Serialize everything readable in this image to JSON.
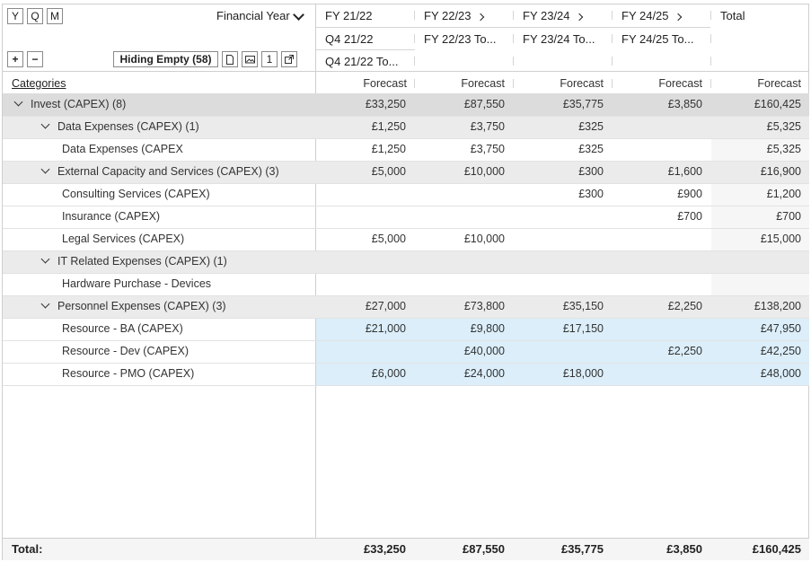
{
  "toolbar": {
    "period_buttons": [
      "Y",
      "Q",
      "M"
    ],
    "expand_label": "+",
    "collapse_label": "−",
    "hiding_empty_label": "Hiding Empty (58)",
    "page_number": "1",
    "financial_year_label": "Financial Year"
  },
  "columns": {
    "years": [
      "FY 21/22",
      "FY 22/23",
      "FY 23/24",
      "FY 24/25",
      "Total"
    ],
    "quarters": [
      "Q4 21/22",
      "FY 22/23 To...",
      "FY 23/24 To...",
      "FY 24/25 To..."
    ],
    "subquarters": [
      "Q4 21/22 To..."
    ],
    "measure": [
      "Forecast",
      "Forecast",
      "Forecast",
      "Forecast",
      "Forecast"
    ],
    "categories_header": "Categories"
  },
  "rows": [
    {
      "label": "Invest (CAPEX) (8)",
      "values": [
        "£33,250",
        "£87,550",
        "£35,775",
        "£3,850",
        "£160,425"
      ]
    },
    {
      "label": "Data Expenses (CAPEX) (1)",
      "values": [
        "£1,250",
        "£3,750",
        "£325",
        "",
        "£5,325"
      ]
    },
    {
      "label": "Data Expenses (CAPEX",
      "values": [
        "£1,250",
        "£3,750",
        "£325",
        "",
        "£5,325"
      ]
    },
    {
      "label": "External Capacity and Services (CAPEX) (3)",
      "values": [
        "£5,000",
        "£10,000",
        "£300",
        "£1,600",
        "£16,900"
      ]
    },
    {
      "label": "Consulting Services (CAPEX)",
      "values": [
        "",
        "",
        "£300",
        "£900",
        "£1,200"
      ]
    },
    {
      "label": "Insurance (CAPEX)",
      "values": [
        "",
        "",
        "",
        "£700",
        "£700"
      ]
    },
    {
      "label": "Legal Services (CAPEX)",
      "values": [
        "£5,000",
        "£10,000",
        "",
        "",
        "£15,000"
      ]
    },
    {
      "label": "IT Related Expenses (CAPEX) (1)",
      "values": [
        "",
        "",
        "",
        "",
        ""
      ]
    },
    {
      "label": "Hardware Purchase - Devices",
      "values": [
        "",
        "",
        "",
        "",
        ""
      ]
    },
    {
      "label": "Personnel Expenses (CAPEX) (3)",
      "values": [
        "£27,000",
        "£73,800",
        "£35,150",
        "£2,250",
        "£138,200"
      ]
    },
    {
      "label": "Resource - BA (CAPEX)",
      "values": [
        "£21,000",
        "£9,800",
        "£17,150",
        "",
        "£47,950"
      ]
    },
    {
      "label": "Resource - Dev (CAPEX)",
      "values": [
        "",
        "£40,000",
        "",
        "£2,250",
        "£42,250"
      ]
    },
    {
      "label": "Resource - PMO (CAPEX)",
      "values": [
        "£6,000",
        "£24,000",
        "£18,000",
        "",
        "£48,000"
      ]
    }
  ],
  "totals": {
    "label": "Total:",
    "values": [
      "£33,250",
      "£87,550",
      "£35,775",
      "£3,850",
      "£160,425"
    ]
  }
}
